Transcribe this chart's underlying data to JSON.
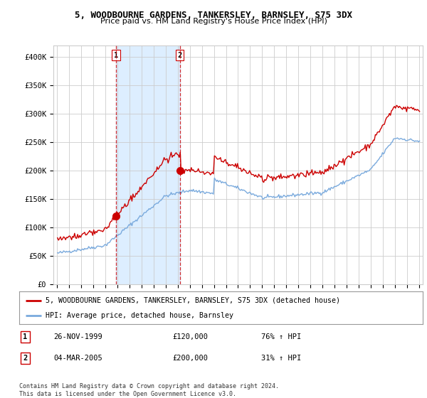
{
  "title": "5, WOODBOURNE GARDENS, TANKERSLEY, BARNSLEY, S75 3DX",
  "subtitle": "Price paid vs. HM Land Registry's House Price Index (HPI)",
  "legend_line1": "5, WOODBOURNE GARDENS, TANKERSLEY, BARNSLEY, S75 3DX (detached house)",
  "legend_line2": "HPI: Average price, detached house, Barnsley",
  "sale1_date": "26-NOV-1999",
  "sale1_price": "£120,000",
  "sale1_hpi": "76% ↑ HPI",
  "sale2_date": "04-MAR-2005",
  "sale2_price": "£200,000",
  "sale2_hpi": "31% ↑ HPI",
  "footer": "Contains HM Land Registry data © Crown copyright and database right 2024.\nThis data is licensed under the Open Government Licence v3.0.",
  "red_color": "#cc0000",
  "blue_color": "#7aaadd",
  "shade_color": "#ddeeff",
  "background_color": "#ffffff",
  "grid_color": "#cccccc",
  "ylim": [
    0,
    420000
  ],
  "yticks": [
    0,
    50000,
    100000,
    150000,
    200000,
    250000,
    300000,
    350000,
    400000
  ],
  "ytick_labels": [
    "£0",
    "£50K",
    "£100K",
    "£150K",
    "£200K",
    "£250K",
    "£300K",
    "£350K",
    "£400K"
  ],
  "sale1_x": 1999.9,
  "sale1_y": 120000,
  "sale2_x": 2005.17,
  "sale2_y": 200000,
  "vline1_x": 1999.9,
  "vline2_x": 2005.17,
  "xmin": 1994.7,
  "xmax": 2025.3
}
